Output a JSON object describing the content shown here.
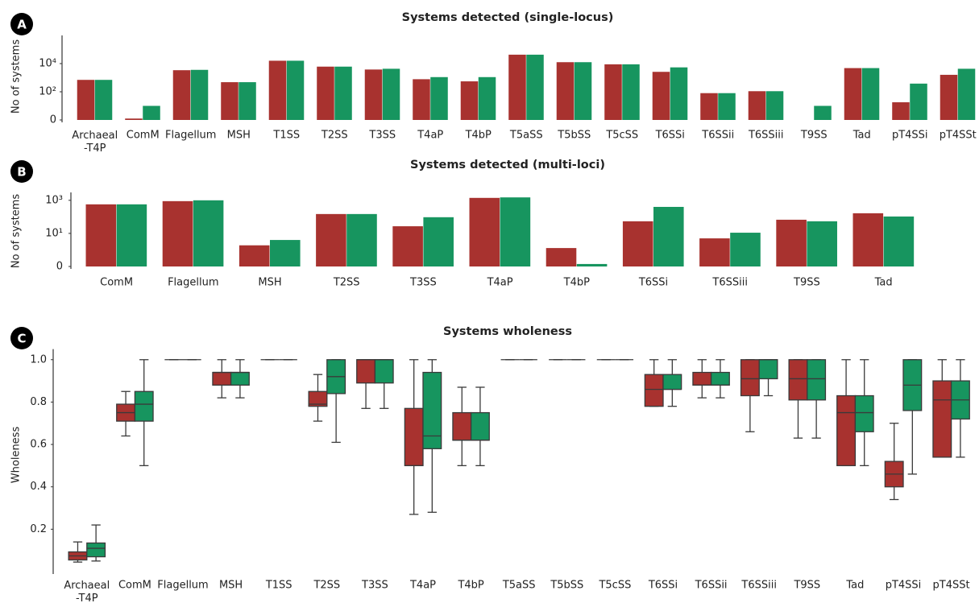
{
  "chart_data": [
    {
      "type": "bar",
      "panel_label": "A",
      "title": "Systems detected (single-locus)",
      "ylabel": "No of systems",
      "yscale": "symlog",
      "linthresh": 10,
      "ylim": [
        0,
        1000000
      ],
      "yticks": [
        0,
        {
          "value": 100,
          "label": "10²"
        },
        {
          "value": 10000,
          "label": "10⁴"
        }
      ],
      "categories": [
        "Archaeal\n-T4P",
        "ComM",
        "Flagellum",
        "MSH",
        "T1SS",
        "T2SS",
        "T3SS",
        "T4aP",
        "T4bP",
        "T5aSS",
        "T5bSS",
        "T5cSS",
        "T6SSi",
        "T6SSii",
        "T6SSiii",
        "T9SS",
        "Tad",
        "pT4SSi",
        "pT4SSt"
      ],
      "series": [
        {
          "color": "#a8322f",
          "values": [
            700,
            1,
            3400,
            480,
            16000,
            6100,
            3800,
            780,
            550,
            43000,
            12600,
            8900,
            2600,
            80,
            110,
            0,
            4800,
            18,
            1600
          ]
        },
        {
          "color": "#17955f",
          "values": [
            700,
            10,
            3600,
            480,
            16000,
            6100,
            4300,
            1100,
            1100,
            43000,
            12600,
            8900,
            5400,
            80,
            110,
            10,
            4800,
            380,
            4300
          ]
        }
      ]
    },
    {
      "type": "bar",
      "panel_label": "B",
      "title": "Systems detected (multi-loci)",
      "ylabel": "No of systems",
      "yscale": "symlog",
      "linthresh": 1,
      "ylim": [
        0,
        3000
      ],
      "yticks": [
        0,
        {
          "value": 10,
          "label": "10¹"
        },
        {
          "value": 1000,
          "label": "10³"
        }
      ],
      "categories": [
        "ComM",
        "Flagellum",
        "MSH",
        "T2SS",
        "T3SS",
        "T4aP",
        "T4bP",
        "T6SSi",
        "T6SSiii",
        "T9SS",
        "Tad"
      ],
      "series": [
        {
          "color": "#a8322f",
          "values": [
            570,
            890,
            1.9,
            148,
            27,
            1400,
            1.3,
            54,
            5,
            67,
            165
          ]
        },
        {
          "color": "#17955f",
          "values": [
            570,
            1000,
            4,
            148,
            95,
            1500,
            0.15,
            400,
            11,
            54,
            105
          ]
        }
      ]
    },
    {
      "type": "box",
      "panel_label": "C",
      "title": "Systems wholeness",
      "ylabel": "Wholeness",
      "ylim": [
        0,
        1.05
      ],
      "yticks": [
        0.2,
        0.4,
        0.6,
        0.8,
        {
          "value": 1,
          "label": "1.0"
        }
      ],
      "categories": [
        "Archaeal\n-T4P",
        "ComM",
        "Flagellum",
        "MSH",
        "T1SS",
        "T2SS",
        "T3SS",
        "T4aP",
        "T4bP",
        "T5aSS",
        "T5bSS",
        "T5cSS",
        "T6SSi",
        "T6SSii",
        "T6SSiii",
        "T9SS",
        "Tad",
        "pT4SSi",
        "pT4SSt"
      ],
      "series": [
        {
          "color": "#a8322f",
          "boxes": [
            {
              "whislo": 0.045,
              "q1": 0.055,
              "med": 0.074,
              "q3": 0.093,
              "whishi": 0.14
            },
            {
              "whislo": 0.64,
              "q1": 0.71,
              "med": 0.75,
              "q3": 0.79,
              "whishi": 0.85
            },
            {
              "whislo": 1,
              "q1": 1,
              "med": 1,
              "q3": 1,
              "whishi": 1
            },
            {
              "whislo": 0.82,
              "q1": 0.88,
              "med": 0.94,
              "q3": 0.94,
              "whishi": 1
            },
            {
              "whislo": 1,
              "q1": 1,
              "med": 1,
              "q3": 1,
              "whishi": 1
            },
            {
              "whislo": 0.71,
              "q1": 0.78,
              "med": 0.79,
              "q3": 0.85,
              "whishi": 0.93
            },
            {
              "whislo": 0.77,
              "q1": 0.89,
              "med": 1,
              "q3": 1,
              "whishi": 1
            },
            {
              "whislo": 0.27,
              "q1": 0.5,
              "med": 0.5,
              "q3": 0.77,
              "whishi": 1
            },
            {
              "whislo": 0.5,
              "q1": 0.62,
              "med": 0.62,
              "q3": 0.75,
              "whishi": 0.87
            },
            {
              "whislo": 1,
              "q1": 1,
              "med": 1,
              "q3": 1,
              "whishi": 1
            },
            {
              "whislo": 1,
              "q1": 1,
              "med": 1,
              "q3": 1,
              "whishi": 1
            },
            {
              "whislo": 1,
              "q1": 1,
              "med": 1,
              "q3": 1,
              "whishi": 1
            },
            {
              "whislo": 0.78,
              "q1": 0.78,
              "med": 0.86,
              "q3": 0.93,
              "whishi": 1
            },
            {
              "whislo": 0.82,
              "q1": 0.88,
              "med": 0.88,
              "q3": 0.94,
              "whishi": 1
            },
            {
              "whislo": 0.66,
              "q1": 0.83,
              "med": 0.91,
              "q3": 1,
              "whishi": 1
            },
            {
              "whislo": 0.63,
              "q1": 0.81,
              "med": 0.91,
              "q3": 1,
              "whishi": 1
            },
            {
              "whislo": 0.5,
              "q1": 0.5,
              "med": 0.75,
              "q3": 0.83,
              "whishi": 1
            },
            {
              "whislo": 0.34,
              "q1": 0.4,
              "med": 0.46,
              "q3": 0.52,
              "whishi": 0.7
            },
            {
              "whislo": 0.54,
              "q1": 0.54,
              "med": 0.81,
              "q3": 0.9,
              "whishi": 1
            }
          ]
        },
        {
          "color": "#17955f",
          "boxes": [
            {
              "whislo": 0.05,
              "q1": 0.07,
              "med": 0.11,
              "q3": 0.135,
              "whishi": 0.22
            },
            {
              "whislo": 0.5,
              "q1": 0.71,
              "med": 0.79,
              "q3": 0.85,
              "whishi": 1
            },
            {
              "whislo": 1,
              "q1": 1,
              "med": 1,
              "q3": 1,
              "whishi": 1
            },
            {
              "whislo": 0.82,
              "q1": 0.88,
              "med": 0.94,
              "q3": 0.94,
              "whishi": 1
            },
            {
              "whislo": 1,
              "q1": 1,
              "med": 1,
              "q3": 1,
              "whishi": 1
            },
            {
              "whislo": 0.61,
              "q1": 0.84,
              "med": 0.92,
              "q3": 1,
              "whishi": 1
            },
            {
              "whislo": 0.77,
              "q1": 0.89,
              "med": 1,
              "q3": 1,
              "whishi": 1
            },
            {
              "whislo": 0.28,
              "q1": 0.58,
              "med": 0.64,
              "q3": 0.94,
              "whishi": 1
            },
            {
              "whislo": 0.5,
              "q1": 0.62,
              "med": 0.62,
              "q3": 0.75,
              "whishi": 0.87
            },
            {
              "whislo": 1,
              "q1": 1,
              "med": 1,
              "q3": 1,
              "whishi": 1
            },
            {
              "whislo": 1,
              "q1": 1,
              "med": 1,
              "q3": 1,
              "whishi": 1
            },
            {
              "whislo": 1,
              "q1": 1,
              "med": 1,
              "q3": 1,
              "whishi": 1
            },
            {
              "whislo": 0.78,
              "q1": 0.86,
              "med": 0.86,
              "q3": 0.93,
              "whishi": 1
            },
            {
              "whislo": 0.82,
              "q1": 0.88,
              "med": 0.88,
              "q3": 0.94,
              "whishi": 1
            },
            {
              "whislo": 0.83,
              "q1": 0.91,
              "med": 1,
              "q3": 1,
              "whishi": 1
            },
            {
              "whislo": 0.63,
              "q1": 0.81,
              "med": 0.91,
              "q3": 1,
              "whishi": 1
            },
            {
              "whislo": 0.5,
              "q1": 0.66,
              "med": 0.75,
              "q3": 0.83,
              "whishi": 1
            },
            {
              "whislo": 0.46,
              "q1": 0.76,
              "med": 0.88,
              "q3": 1,
              "whishi": 1
            },
            {
              "whislo": 0.54,
              "q1": 0.72,
              "med": 0.81,
              "q3": 0.9,
              "whishi": 1
            }
          ]
        }
      ]
    }
  ]
}
